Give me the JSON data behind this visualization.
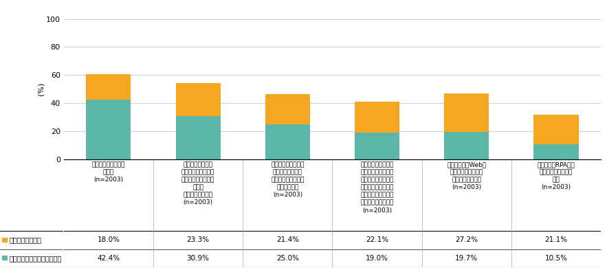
{
  "categories": [
    "社内業務のペーパー\nレス化\n(n=2003)",
    "業務知識やノウハ\nウ、応対マニュアル\n等をシステムにより\n共有化\n（ナレッジ共有）\n(n=2003)",
    "社員が個別に持つ知\n識やノウハウのマ\nニュアル化（暗黙知\nの形式知化）\n(n=2003)",
    "事業スピードを速め\nる仕組み（アジャイ\nル型開発：小単位で\nの実装し、徐々に改\n善しながら進めてい\nく手法など）の導入\n(n=2003)",
    "テレワーク、Web会\n議などを活用した柔\n軟な働き方の促進\n(n=2003)",
    "ロボット、RPAなど\nを活用した業務の自\n動化\n(n=2003)"
  ],
  "recent3years": [
    18.0,
    23.3,
    21.4,
    22.1,
    27.2,
    21.1
  ],
  "over3years": [
    42.4,
    30.9,
    25.0,
    19.0,
    19.7,
    10.5
  ],
  "color_recent": "#F5A623",
  "color_over3": "#5BB8A8",
  "ylabel": "(%)",
  "ylim": [
    0,
    100
  ],
  "yticks": [
    0,
    20,
    40,
    60,
    80,
    100
  ],
  "legend_recent": "直近３年内に実施",
  "legend_over3": "３年以上前から実施している",
  "background_color": "#ffffff",
  "grid_color": "#cccccc",
  "bar_width": 0.5
}
